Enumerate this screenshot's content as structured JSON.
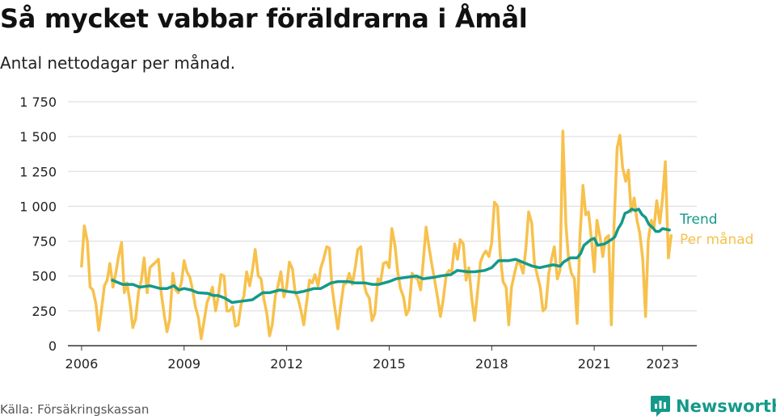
{
  "title": "Så mycket vabbar föräldrarna i Åmål",
  "subtitle": "Antal nettodagar per månad.",
  "source": "Källa: Försäkringskassan",
  "logo": {
    "text": "Newsworthy",
    "icon": "newsworthy-logo-icon",
    "color": "#14998a"
  },
  "chart_data": {
    "type": "line",
    "title": "Så mycket vabbar föräldrarna i Åmål",
    "subtitle": "Antal nettodagar per månad.",
    "xlabel": "",
    "ylabel": "",
    "xlim": [
      2005.6,
      2024.0
    ],
    "ylim": [
      0,
      1750
    ],
    "y_ticks": [
      0,
      250,
      500,
      750,
      1000,
      1250,
      1500,
      1750
    ],
    "y_tick_labels": [
      "0",
      "250",
      "500",
      "750",
      "1 000",
      "1 250",
      "1 500",
      "1 750"
    ],
    "x_ticks": [
      2006,
      2009,
      2012,
      2015,
      2018,
      2021,
      2023
    ],
    "x_tick_labels": [
      "2006",
      "2009",
      "2012",
      "2015",
      "2018",
      "2021",
      "2023"
    ],
    "grid": "horizontal",
    "legend": "direct labels at right end of lines",
    "series": [
      {
        "name": "Per månad",
        "color": "#f7c14c",
        "points": [
          [
            2006.0,
            570
          ],
          [
            2006.08,
            860
          ],
          [
            2006.17,
            750
          ],
          [
            2006.25,
            420
          ],
          [
            2006.33,
            400
          ],
          [
            2006.42,
            300
          ],
          [
            2006.5,
            110
          ],
          [
            2006.58,
            250
          ],
          [
            2006.67,
            430
          ],
          [
            2006.75,
            470
          ],
          [
            2006.83,
            590
          ],
          [
            2006.92,
            420
          ],
          [
            2007.0,
            520
          ],
          [
            2007.08,
            640
          ],
          [
            2007.17,
            740
          ],
          [
            2007.25,
            380
          ],
          [
            2007.33,
            450
          ],
          [
            2007.42,
            300
          ],
          [
            2007.5,
            130
          ],
          [
            2007.58,
            190
          ],
          [
            2007.67,
            390
          ],
          [
            2007.75,
            470
          ],
          [
            2007.83,
            630
          ],
          [
            2007.92,
            380
          ],
          [
            2008.0,
            560
          ],
          [
            2008.08,
            580
          ],
          [
            2008.17,
            600
          ],
          [
            2008.25,
            620
          ],
          [
            2008.33,
            380
          ],
          [
            2008.42,
            220
          ],
          [
            2008.5,
            100
          ],
          [
            2008.58,
            190
          ],
          [
            2008.67,
            520
          ],
          [
            2008.75,
            400
          ],
          [
            2008.83,
            380
          ],
          [
            2008.92,
            450
          ],
          [
            2009.0,
            610
          ],
          [
            2009.08,
            530
          ],
          [
            2009.17,
            490
          ],
          [
            2009.25,
            400
          ],
          [
            2009.33,
            280
          ],
          [
            2009.42,
            200
          ],
          [
            2009.5,
            50
          ],
          [
            2009.58,
            170
          ],
          [
            2009.67,
            310
          ],
          [
            2009.75,
            360
          ],
          [
            2009.83,
            420
          ],
          [
            2009.92,
            250
          ],
          [
            2010.0,
            350
          ],
          [
            2010.08,
            510
          ],
          [
            2010.17,
            500
          ],
          [
            2010.25,
            250
          ],
          [
            2010.33,
            250
          ],
          [
            2010.42,
            280
          ],
          [
            2010.5,
            140
          ],
          [
            2010.58,
            150
          ],
          [
            2010.67,
            300
          ],
          [
            2010.75,
            360
          ],
          [
            2010.83,
            530
          ],
          [
            2010.92,
            430
          ],
          [
            2011.0,
            540
          ],
          [
            2011.08,
            690
          ],
          [
            2011.17,
            500
          ],
          [
            2011.25,
            480
          ],
          [
            2011.33,
            340
          ],
          [
            2011.42,
            230
          ],
          [
            2011.5,
            70
          ],
          [
            2011.58,
            150
          ],
          [
            2011.67,
            360
          ],
          [
            2011.75,
            430
          ],
          [
            2011.83,
            530
          ],
          [
            2011.92,
            350
          ],
          [
            2012.0,
            420
          ],
          [
            2012.08,
            600
          ],
          [
            2012.17,
            550
          ],
          [
            2012.25,
            380
          ],
          [
            2012.33,
            340
          ],
          [
            2012.42,
            250
          ],
          [
            2012.5,
            150
          ],
          [
            2012.58,
            300
          ],
          [
            2012.67,
            470
          ],
          [
            2012.75,
            450
          ],
          [
            2012.83,
            510
          ],
          [
            2012.92,
            430
          ],
          [
            2013.0,
            560
          ],
          [
            2013.08,
            620
          ],
          [
            2013.17,
            710
          ],
          [
            2013.25,
            700
          ],
          [
            2013.33,
            420
          ],
          [
            2013.42,
            250
          ],
          [
            2013.5,
            120
          ],
          [
            2013.58,
            280
          ],
          [
            2013.67,
            440
          ],
          [
            2013.75,
            450
          ],
          [
            2013.83,
            520
          ],
          [
            2013.92,
            440
          ],
          [
            2014.0,
            550
          ],
          [
            2014.08,
            690
          ],
          [
            2014.17,
            710
          ],
          [
            2014.25,
            460
          ],
          [
            2014.33,
            380
          ],
          [
            2014.42,
            340
          ],
          [
            2014.5,
            180
          ],
          [
            2014.58,
            230
          ],
          [
            2014.67,
            480
          ],
          [
            2014.75,
            460
          ],
          [
            2014.83,
            590
          ],
          [
            2014.92,
            600
          ],
          [
            2015.0,
            560
          ],
          [
            2015.08,
            840
          ],
          [
            2015.17,
            720
          ],
          [
            2015.25,
            530
          ],
          [
            2015.33,
            410
          ],
          [
            2015.42,
            350
          ],
          [
            2015.5,
            220
          ],
          [
            2015.58,
            260
          ],
          [
            2015.67,
            520
          ],
          [
            2015.75,
            490
          ],
          [
            2015.83,
            480
          ],
          [
            2015.92,
            400
          ],
          [
            2016.0,
            610
          ],
          [
            2016.08,
            850
          ],
          [
            2016.17,
            700
          ],
          [
            2016.25,
            580
          ],
          [
            2016.33,
            470
          ],
          [
            2016.42,
            340
          ],
          [
            2016.5,
            210
          ],
          [
            2016.58,
            330
          ],
          [
            2016.67,
            510
          ],
          [
            2016.75,
            540
          ],
          [
            2016.83,
            530
          ],
          [
            2016.92,
            730
          ],
          [
            2017.0,
            620
          ],
          [
            2017.08,
            760
          ],
          [
            2017.17,
            730
          ],
          [
            2017.25,
            470
          ],
          [
            2017.33,
            560
          ],
          [
            2017.42,
            330
          ],
          [
            2017.5,
            180
          ],
          [
            2017.58,
            370
          ],
          [
            2017.67,
            600
          ],
          [
            2017.75,
            650
          ],
          [
            2017.83,
            680
          ],
          [
            2017.92,
            640
          ],
          [
            2018.0,
            740
          ],
          [
            2018.08,
            1030
          ],
          [
            2018.17,
            1000
          ],
          [
            2018.25,
            650
          ],
          [
            2018.33,
            460
          ],
          [
            2018.42,
            420
          ],
          [
            2018.5,
            150
          ],
          [
            2018.58,
            420
          ],
          [
            2018.67,
            520
          ],
          [
            2018.75,
            600
          ],
          [
            2018.83,
            590
          ],
          [
            2018.92,
            520
          ],
          [
            2019.0,
            700
          ],
          [
            2019.08,
            960
          ],
          [
            2019.17,
            880
          ],
          [
            2019.25,
            590
          ],
          [
            2019.33,
            510
          ],
          [
            2019.42,
            420
          ],
          [
            2019.5,
            250
          ],
          [
            2019.58,
            270
          ],
          [
            2019.67,
            520
          ],
          [
            2019.75,
            620
          ],
          [
            2019.83,
            710
          ],
          [
            2019.92,
            480
          ],
          [
            2020.0,
            540
          ],
          [
            2020.08,
            1540
          ],
          [
            2020.17,
            870
          ],
          [
            2020.25,
            620
          ],
          [
            2020.33,
            520
          ],
          [
            2020.42,
            480
          ],
          [
            2020.5,
            160
          ],
          [
            2020.58,
            770
          ],
          [
            2020.67,
            1150
          ],
          [
            2020.75,
            940
          ],
          [
            2020.83,
            960
          ],
          [
            2020.92,
            760
          ],
          [
            2021.0,
            530
          ],
          [
            2021.08,
            900
          ],
          [
            2021.17,
            780
          ],
          [
            2021.25,
            640
          ],
          [
            2021.33,
            770
          ],
          [
            2021.42,
            790
          ],
          [
            2021.5,
            150
          ],
          [
            2021.58,
            870
          ],
          [
            2021.67,
            1420
          ],
          [
            2021.75,
            1510
          ],
          [
            2021.83,
            1280
          ],
          [
            2021.92,
            1180
          ],
          [
            2022.0,
            1260
          ],
          [
            2022.08,
            960
          ],
          [
            2022.17,
            1060
          ],
          [
            2022.25,
            900
          ],
          [
            2022.33,
            810
          ],
          [
            2022.42,
            620
          ],
          [
            2022.5,
            210
          ],
          [
            2022.58,
            760
          ],
          [
            2022.67,
            900
          ],
          [
            2022.75,
            850
          ],
          [
            2022.83,
            1040
          ],
          [
            2022.92,
            880
          ],
          [
            2023.0,
            1060
          ],
          [
            2023.08,
            1320
          ],
          [
            2023.17,
            630
          ],
          [
            2023.25,
            790
          ]
        ]
      },
      {
        "name": "Trend",
        "color": "#14998a",
        "points": [
          [
            2006.9,
            470
          ],
          [
            2007.0,
            460
          ],
          [
            2007.2,
            440
          ],
          [
            2007.5,
            440
          ],
          [
            2007.7,
            420
          ],
          [
            2008.0,
            430
          ],
          [
            2008.3,
            410
          ],
          [
            2008.5,
            410
          ],
          [
            2008.7,
            430
          ],
          [
            2008.85,
            400
          ],
          [
            2009.0,
            410
          ],
          [
            2009.2,
            400
          ],
          [
            2009.4,
            380
          ],
          [
            2009.7,
            375
          ],
          [
            2009.85,
            360
          ],
          [
            2010.0,
            360
          ],
          [
            2010.2,
            340
          ],
          [
            2010.4,
            310
          ],
          [
            2010.7,
            320
          ],
          [
            2011.0,
            330
          ],
          [
            2011.3,
            380
          ],
          [
            2011.5,
            380
          ],
          [
            2011.8,
            400
          ],
          [
            2012.0,
            390
          ],
          [
            2012.3,
            380
          ],
          [
            2012.5,
            390
          ],
          [
            2012.8,
            410
          ],
          [
            2013.0,
            410
          ],
          [
            2013.3,
            450
          ],
          [
            2013.5,
            460
          ],
          [
            2013.8,
            460
          ],
          [
            2014.0,
            450
          ],
          [
            2014.3,
            450
          ],
          [
            2014.5,
            440
          ],
          [
            2014.7,
            440
          ],
          [
            2015.0,
            460
          ],
          [
            2015.2,
            480
          ],
          [
            2015.5,
            490
          ],
          [
            2015.8,
            500
          ],
          [
            2016.0,
            480
          ],
          [
            2016.3,
            490
          ],
          [
            2016.5,
            500
          ],
          [
            2016.8,
            510
          ],
          [
            2017.0,
            540
          ],
          [
            2017.3,
            530
          ],
          [
            2017.5,
            530
          ],
          [
            2017.8,
            540
          ],
          [
            2018.0,
            560
          ],
          [
            2018.2,
            610
          ],
          [
            2018.5,
            610
          ],
          [
            2018.7,
            620
          ],
          [
            2019.0,
            590
          ],
          [
            2019.2,
            570
          ],
          [
            2019.4,
            560
          ],
          [
            2019.6,
            570
          ],
          [
            2019.8,
            580
          ],
          [
            2020.0,
            570
          ],
          [
            2020.1,
            600
          ],
          [
            2020.3,
            630
          ],
          [
            2020.5,
            630
          ],
          [
            2020.6,
            660
          ],
          [
            2020.7,
            720
          ],
          [
            2020.9,
            760
          ],
          [
            2021.0,
            770
          ],
          [
            2021.1,
            720
          ],
          [
            2021.3,
            730
          ],
          [
            2021.5,
            760
          ],
          [
            2021.6,
            780
          ],
          [
            2021.7,
            840
          ],
          [
            2021.8,
            880
          ],
          [
            2021.9,
            950
          ],
          [
            2022.0,
            960
          ],
          [
            2022.1,
            980
          ],
          [
            2022.2,
            970
          ],
          [
            2022.3,
            980
          ],
          [
            2022.4,
            940
          ],
          [
            2022.5,
            920
          ],
          [
            2022.6,
            870
          ],
          [
            2022.7,
            850
          ],
          [
            2022.8,
            820
          ],
          [
            2022.9,
            820
          ],
          [
            2023.0,
            840
          ],
          [
            2023.2,
            830
          ]
        ]
      }
    ]
  }
}
